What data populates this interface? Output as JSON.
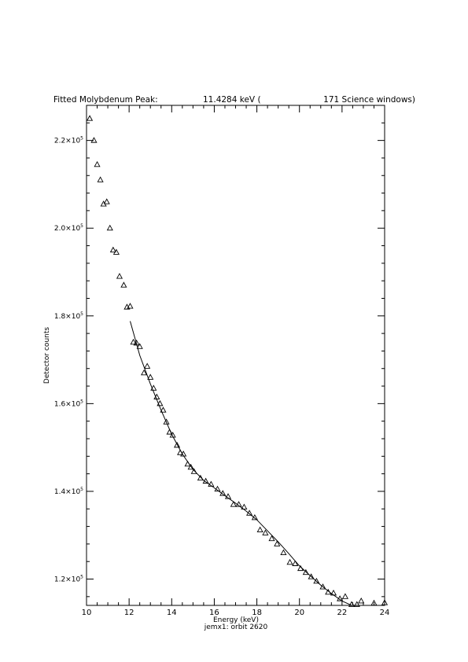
{
  "chart_data": {
    "type": "scatter",
    "title_parts": {
      "label": "Fitted Molybdenum Peak:",
      "energy": "11.4284 keV (",
      "windows": "171 Science windows)"
    },
    "xlabel": "Energy (keV)",
    "ylabel": "Detector counts",
    "footer": "jemx1: orbit 2620",
    "xlim": [
      10,
      24
    ],
    "ylim": [
      114000,
      228000
    ],
    "x_ticks": [
      10,
      12,
      14,
      16,
      18,
      20,
      22,
      24
    ],
    "x_tick_labels": [
      "10",
      "12",
      "14",
      "16",
      "18",
      "20",
      "22",
      "24"
    ],
    "y_ticks": [
      120000,
      140000,
      160000,
      180000,
      200000,
      220000
    ],
    "y_tick_labels": [
      {
        "mant": "1.2",
        "exp": "5"
      },
      {
        "mant": "1.4",
        "exp": "5"
      },
      {
        "mant": "1.6",
        "exp": "5"
      },
      {
        "mant": "1.8",
        "exp": "5"
      },
      {
        "mant": "2.0",
        "exp": "5"
      },
      {
        "mant": "2.2",
        "exp": "5"
      }
    ],
    "grid": false,
    "series": [
      {
        "marker": "triangle",
        "x": [
          10.15,
          10.35,
          10.5,
          10.65,
          10.8,
          10.95,
          11.1,
          11.25,
          11.4,
          11.55,
          11.75,
          11.9,
          12.05,
          12.2,
          12.35,
          12.5,
          12.7,
          12.85,
          13.0,
          13.15,
          13.3,
          13.45,
          13.6,
          13.75,
          13.9,
          14.05,
          14.25,
          14.4,
          14.55,
          14.75,
          14.9,
          15.05,
          15.35,
          15.6,
          15.85,
          16.15,
          16.4,
          16.65,
          16.9,
          17.15,
          17.4,
          17.65,
          17.9,
          18.15,
          18.4,
          18.7,
          18.95,
          19.25,
          19.55,
          19.8,
          20.05,
          20.3,
          20.55,
          20.8,
          21.1,
          21.35,
          21.6,
          21.9,
          22.15,
          22.45,
          22.7,
          22.9,
          23.5,
          24.0
        ],
        "y": [
          225000,
          220000,
          214500,
          211000,
          205500,
          206000,
          200000,
          195000,
          194500,
          189000,
          187000,
          182000,
          182200,
          174000,
          173800,
          173000,
          167000,
          168500,
          166000,
          163500,
          161500,
          160000,
          158500,
          155800,
          153500,
          152800,
          150500,
          148800,
          148500,
          146200,
          145500,
          144500,
          143000,
          142300,
          141600,
          140500,
          139500,
          138800,
          137000,
          137000,
          136400,
          135000,
          134000,
          131200,
          130500,
          129200,
          128000,
          126000,
          123800,
          123500,
          122400,
          121500,
          120500,
          119500,
          118200,
          117000,
          116800,
          115500,
          116000,
          114200,
          114200,
          115000,
          114500,
          114600
        ]
      },
      {
        "marker": "line",
        "x": [
          12.05,
          12.5,
          13.0,
          13.5,
          14.0,
          14.5,
          15.0,
          15.5,
          16.0,
          16.5,
          17.0,
          17.5,
          18.0,
          18.5,
          19.0,
          19.5,
          20.0,
          20.5,
          21.0,
          21.5,
          22.0,
          22.5,
          22.9
        ],
        "y": [
          178800,
          171000,
          164500,
          158500,
          153000,
          148500,
          145000,
          142500,
          140800,
          139000,
          137300,
          135500,
          133500,
          131000,
          128500,
          125800,
          123000,
          120800,
          118600,
          116700,
          115000,
          113900,
          113400
        ]
      }
    ]
  }
}
